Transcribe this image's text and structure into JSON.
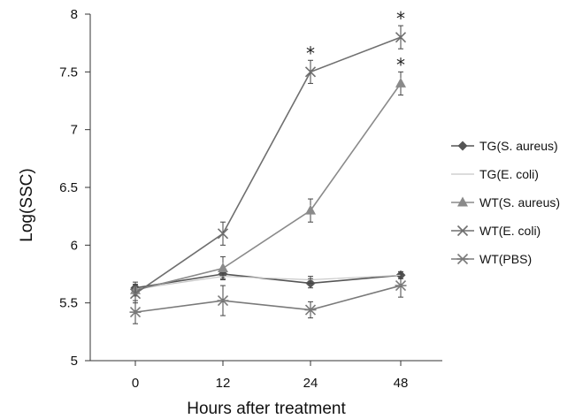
{
  "chart_data": {
    "type": "line",
    "title": "",
    "xlabel": "Hours after treatment",
    "ylabel": "Log(SSC)",
    "categories": [
      "0",
      "12",
      "24",
      "48"
    ],
    "ylim": [
      5,
      8
    ],
    "yticks": [
      "5",
      "5.5",
      "6",
      "6.5",
      "7",
      "7.5",
      "8"
    ],
    "grid": false,
    "legend_position": "right",
    "series": [
      {
        "name": "TG(S. aureus)",
        "marker": "diamond",
        "color": "#555555",
        "values": [
          5.63,
          5.75,
          5.67,
          5.74
        ],
        "errors": [
          0.05,
          0.04,
          0.04,
          0.03
        ]
      },
      {
        "name": "TG(E. coli)",
        "marker": "none",
        "color": "#c8c8c8",
        "values": [
          5.62,
          5.73,
          5.7,
          5.74
        ],
        "errors": [
          0.04,
          0.03,
          0.03,
          0.03
        ]
      },
      {
        "name": "WT(S. aureus)",
        "marker": "triangle",
        "color": "#8a8a8a",
        "values": [
          5.61,
          5.8,
          6.3,
          7.4
        ],
        "errors": [
          0.05,
          0.1,
          0.1,
          0.1
        ]
      },
      {
        "name": "WT(E. coli)",
        "marker": "x",
        "color": "#6f6f6f",
        "values": [
          5.58,
          6.1,
          7.5,
          7.8
        ],
        "errors": [
          0.08,
          0.1,
          0.1,
          0.1
        ]
      },
      {
        "name": "WT(PBS)",
        "marker": "asterisk",
        "color": "#7a7a7a",
        "values": [
          5.42,
          5.52,
          5.44,
          5.65
        ],
        "errors": [
          0.1,
          0.13,
          0.07,
          0.1
        ]
      }
    ],
    "annotations": [
      {
        "text": "*",
        "category": "24",
        "y": 7.5
      },
      {
        "text": "*",
        "category": "48",
        "y": 7.8
      },
      {
        "text": "*",
        "category": "48",
        "y": 7.4
      }
    ]
  }
}
